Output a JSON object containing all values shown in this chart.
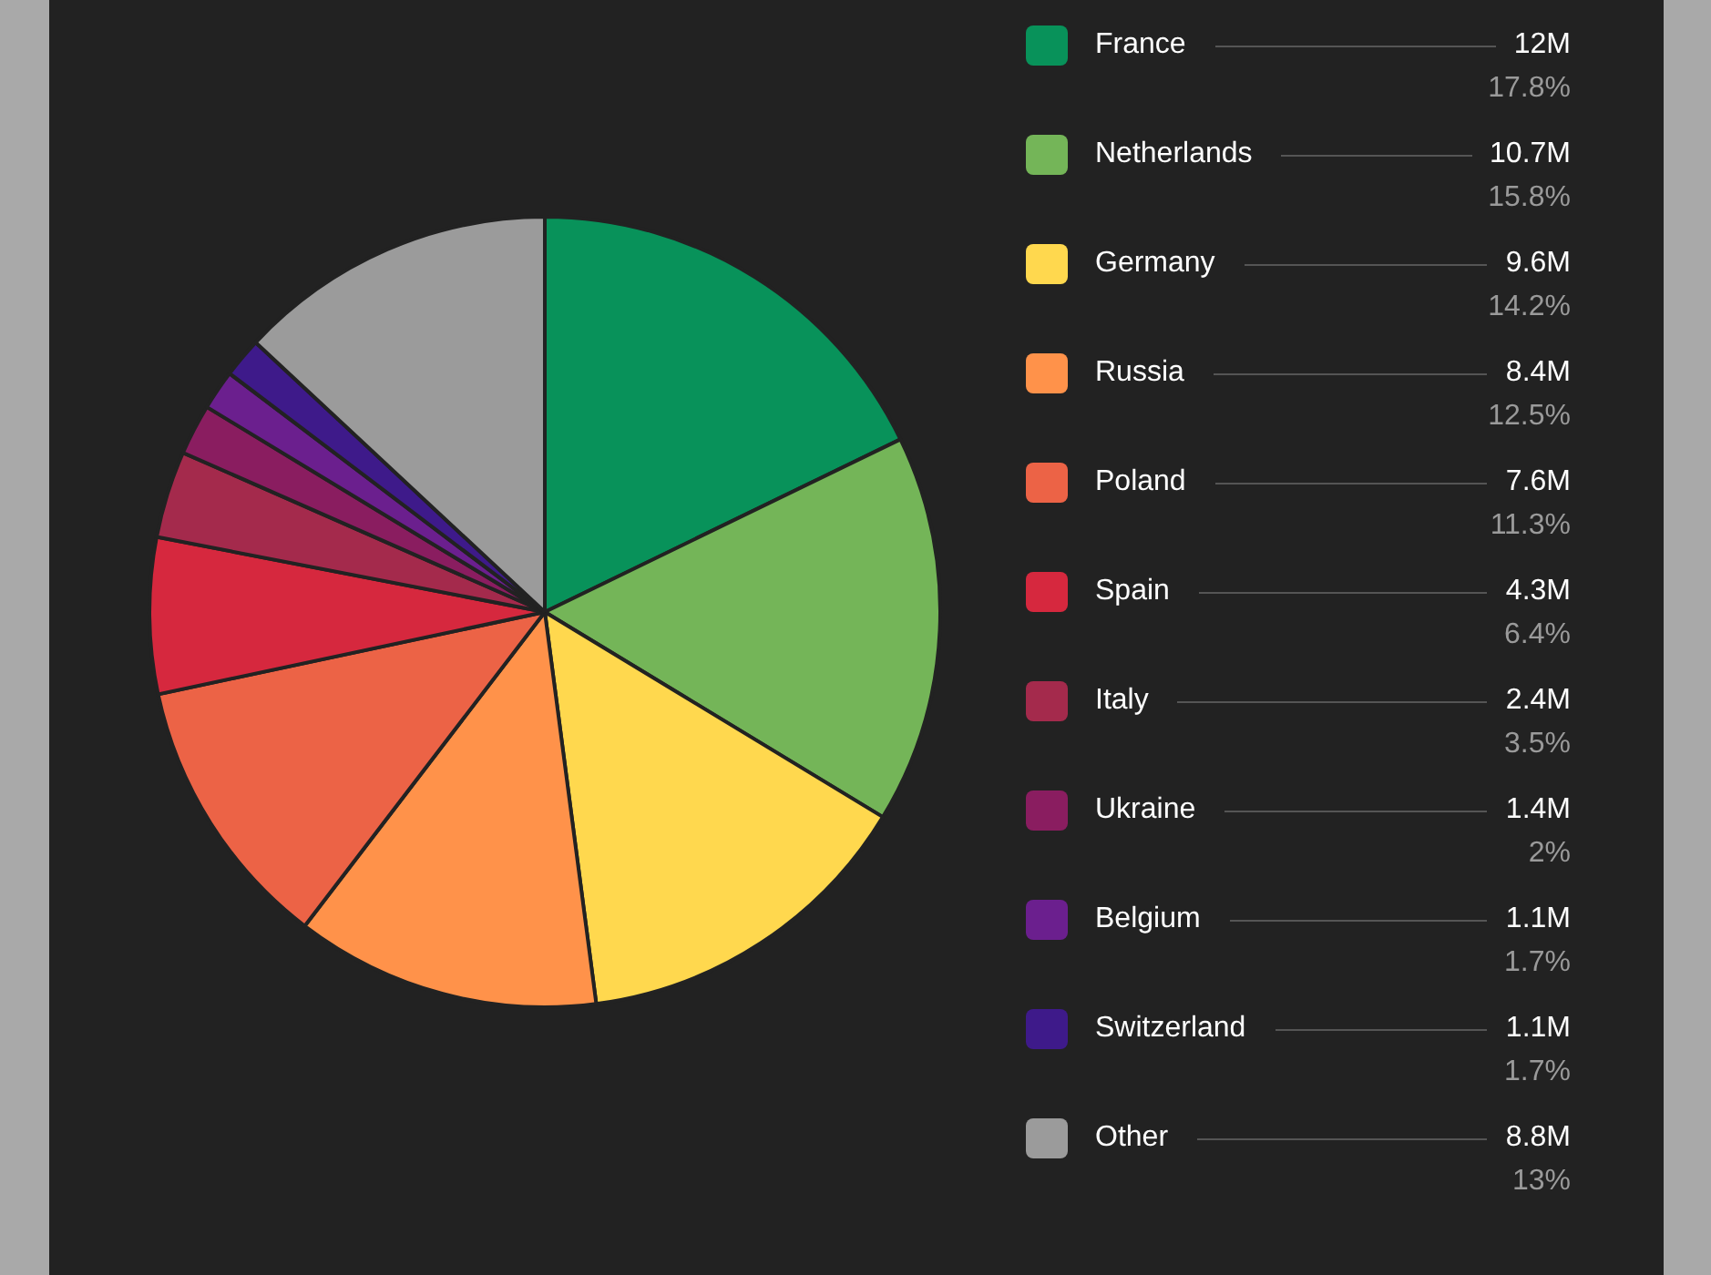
{
  "chart_data": {
    "type": "pie",
    "categories": [
      "France",
      "Netherlands",
      "Germany",
      "Russia",
      "Poland",
      "Spain",
      "Italy",
      "Ukraine",
      "Belgium",
      "Switzerland",
      "Other"
    ],
    "values": [
      12,
      10.7,
      9.6,
      8.4,
      7.6,
      4.3,
      2.4,
      1.4,
      1.1,
      1.1,
      8.8
    ],
    "value_labels": [
      "12M",
      "10.7M",
      "9.6M",
      "8.4M",
      "7.6M",
      "4.3M",
      "2.4M",
      "1.4M",
      "1.1M",
      "1.1M",
      "8.8M"
    ],
    "annotations": [
      {
        "text": "17.8%",
        "x": "France"
      },
      {
        "text": "15.8%",
        "x": "Netherlands"
      },
      {
        "text": "14.2%",
        "x": "Germany"
      },
      {
        "text": "12.5%",
        "x": "Russia"
      },
      {
        "text": "11.3%",
        "x": "Poland"
      },
      {
        "text": "6.4%",
        "x": "Spain"
      },
      {
        "text": "3.5%",
        "x": "Italy"
      },
      {
        "text": "2%",
        "x": "Ukraine"
      },
      {
        "text": "1.7%",
        "x": "Belgium"
      },
      {
        "text": "1.7%",
        "x": "Switzerland"
      },
      {
        "text": "13%",
        "x": "Other"
      }
    ],
    "colors": [
      "#08925a",
      "#74b558",
      "#ffd84e",
      "#ff924a",
      "#ec6346",
      "#d6283e",
      "#a42a4c",
      "#8a1d60",
      "#6b1f8e",
      "#3e1a8a",
      "#9b9b9b"
    ],
    "legend": "right"
  }
}
